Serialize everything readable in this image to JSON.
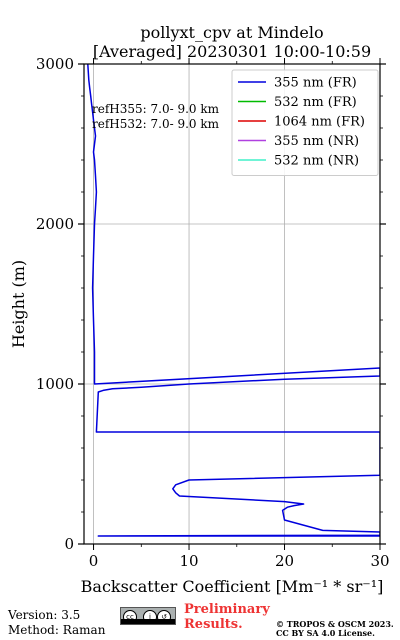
{
  "chart_data": {
    "type": "line",
    "title_line1": "pollyxt_cpv at Mindelo",
    "title_line2": "[Averaged] 20230301 10:00-10:59",
    "xlabel": "Backscatter Coefficient [Mm⁻¹ * sr⁻¹]",
    "ylabel": "Height (m)",
    "xlim": [
      -1,
      30
    ],
    "ylim": [
      0,
      3000
    ],
    "xticks": [
      0,
      10,
      20,
      30
    ],
    "yticks": [
      0,
      1000,
      2000,
      3000
    ],
    "grid": true,
    "legend_position": "top-right",
    "annotations": [
      "refH355:  7.0- 9.0 km",
      "refH532:  7.0- 9.0 km"
    ],
    "series": [
      {
        "name": "355 nm (FR)",
        "color": "#0000dd",
        "x": [
          30,
          0.5,
          30,
          30,
          24,
          20,
          19.8,
          20.3,
          21,
          22,
          20,
          9,
          8.6,
          8.3,
          8.6,
          10,
          30,
          30,
          0.3,
          0.5,
          1,
          2,
          5,
          10,
          20,
          30,
          30,
          0.1,
          0.1,
          0,
          -0.1,
          0,
          0.1,
          0.2,
          0.3,
          0.2,
          0.1,
          0,
          0.1,
          0.2,
          0.1,
          0,
          -0.1,
          -0.2,
          -0.3,
          -0.4,
          -0.5,
          -0.6
        ],
        "y": [
          50,
          50,
          55,
          75,
          85,
          150,
          210,
          230,
          240,
          250,
          265,
          300,
          320,
          345,
          370,
          400,
          430,
          700,
          700,
          950,
          960,
          970,
          980,
          1000,
          1030,
          1050,
          1100,
          1000,
          1200,
          1400,
          1600,
          1800,
          2000,
          2100,
          2200,
          2300,
          2400,
          2450,
          2500,
          2550,
          2600,
          2650,
          2700,
          2750,
          2800,
          2850,
          2900,
          3000
        ]
      },
      {
        "name": "532 nm (FR)",
        "color": "#00bb00",
        "x": [],
        "y": []
      },
      {
        "name": "1064 nm (FR)",
        "color": "#dd0000",
        "x": [],
        "y": []
      },
      {
        "name": "355 nm (NR)",
        "color": "#b040e0",
        "x": [],
        "y": []
      },
      {
        "name": "532 nm (NR)",
        "color": "#40f0c8",
        "x": [],
        "y": []
      }
    ]
  },
  "footer": {
    "version": "Version: 3.5",
    "method": "Method: Raman",
    "preliminary_1": "Preliminary",
    "preliminary_2": "Results.",
    "copyright_1": "© TROPOS & OSCM 2023.",
    "copyright_2": "CC BY SA 4.0 License."
  }
}
